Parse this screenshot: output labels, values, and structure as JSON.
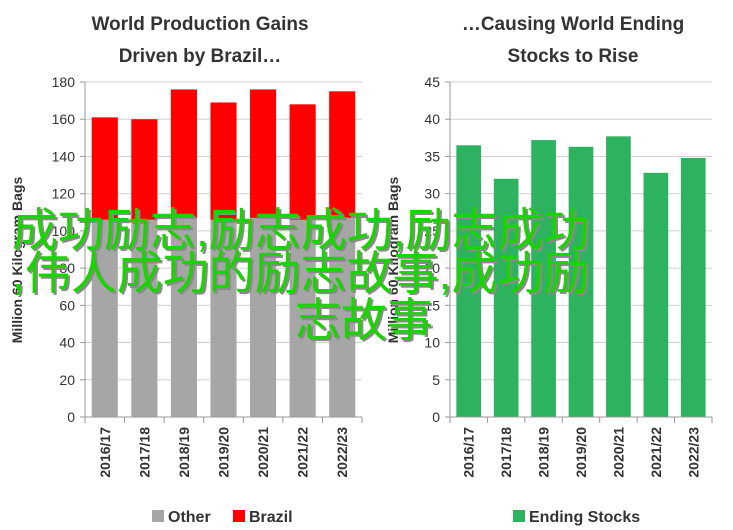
{
  "chart_data": [
    {
      "type": "bar",
      "stacked": true,
      "title_lines": [
        "World Production Gains",
        "Driven by Brazil…"
      ],
      "ylabel": "Million 60 Kilogram Bags",
      "xlabel": "",
      "ylim": [
        0,
        180
      ],
      "yticks": [
        0,
        20,
        40,
        60,
        80,
        100,
        120,
        140,
        160,
        180
      ],
      "categories": [
        "2016/17",
        "2017/18",
        "2018/19",
        "2019/20",
        "2020/21",
        "2021/22",
        "2022/23"
      ],
      "series": [
        {
          "name": "Other",
          "color": "#a6a6a6",
          "values": [
            106,
            106,
            107,
            106,
            107,
            106,
            107
          ]
        },
        {
          "name": "Brazil",
          "color": "#ff0000",
          "values": [
            55,
            54,
            69,
            63,
            69,
            62,
            68
          ]
        }
      ],
      "grid": true,
      "legend": "bottom"
    },
    {
      "type": "bar",
      "title_lines": [
        "…Causing World Ending",
        "Stocks to Rise"
      ],
      "ylabel": "Million 60 Kilogram Bags",
      "xlabel": "",
      "ylim": [
        0,
        45
      ],
      "yticks": [
        0,
        5,
        10,
        15,
        20,
        25,
        30,
        35,
        40,
        45
      ],
      "categories": [
        "2016/17",
        "2017/18",
        "2018/19",
        "2019/20",
        "2020/21",
        "2021/22",
        "2022/23"
      ],
      "series": [
        {
          "name": "Ending Stocks",
          "color": "#2db360",
          "values": [
            36.5,
            32.0,
            37.2,
            36.3,
            37.7,
            32.8,
            34.8
          ]
        }
      ],
      "grid": true,
      "legend": "bottom"
    }
  ],
  "overlay_text": {
    "line1": "成功励志,励志成功,励志成功",
    "line2": ",伟人成功的励志故事,成功励",
    "line3": "志故事"
  }
}
